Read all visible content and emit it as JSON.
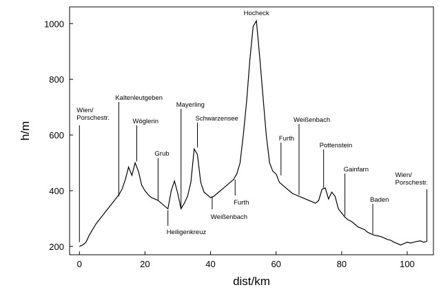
{
  "chart_data": {
    "type": "line",
    "title": "",
    "xlabel": "dist/km",
    "ylabel": "h/m",
    "xlim": [
      -3,
      108
    ],
    "ylim": [
      170,
      1060
    ],
    "x_ticks": [
      0,
      20,
      40,
      60,
      80,
      100
    ],
    "y_ticks": [
      200,
      400,
      600,
      800,
      1000
    ],
    "grid": false,
    "series": [
      {
        "x": [
          0,
          1,
          2,
          3,
          4,
          5,
          6,
          7,
          8,
          9,
          10,
          11,
          12,
          13,
          14,
          15,
          16,
          17,
          18,
          19,
          20,
          21,
          22,
          23,
          24,
          25,
          26,
          27,
          28,
          29,
          30,
          31,
          32,
          33,
          34,
          35,
          36,
          37,
          38,
          39,
          40,
          41,
          42,
          43,
          44,
          45,
          46,
          47,
          48,
          49,
          50,
          51,
          52,
          53,
          54,
          55,
          56,
          57,
          58,
          59,
          60,
          61,
          62,
          63,
          64,
          65,
          66,
          67,
          68,
          69,
          70,
          71,
          72,
          73,
          74,
          75,
          76,
          77,
          78,
          79,
          80,
          81,
          82,
          83,
          84,
          85,
          86,
          87,
          88,
          89,
          90,
          91,
          92,
          93,
          94,
          95,
          96,
          97,
          98,
          99,
          100,
          101,
          102,
          103,
          104,
          105,
          106
        ],
        "y": [
          200,
          205,
          215,
          240,
          260,
          280,
          295,
          310,
          325,
          340,
          355,
          370,
          385,
          405,
          440,
          485,
          455,
          500,
          470,
          420,
          400,
          385,
          375,
          370,
          365,
          355,
          345,
          335,
          400,
          435,
          390,
          335,
          355,
          380,
          430,
          550,
          530,
          430,
          395,
          385,
          375,
          380,
          390,
          400,
          410,
          420,
          430,
          440,
          460,
          500,
          600,
          720,
          870,
          990,
          1010,
          880,
          740,
          600,
          500,
          470,
          460,
          430,
          420,
          410,
          400,
          390,
          385,
          380,
          375,
          370,
          365,
          360,
          355,
          365,
          405,
          410,
          370,
          395,
          380,
          335,
          320,
          305,
          295,
          290,
          280,
          270,
          265,
          260,
          250,
          245,
          240,
          238,
          235,
          230,
          225,
          222,
          215,
          210,
          205,
          210,
          215,
          212,
          215,
          218,
          220,
          215,
          218
        ]
      }
    ],
    "annotations": [
      {
        "lines": [
          "Wien/",
          "Porschestr."
        ],
        "x": 0,
        "y": 215
      },
      {
        "lines": [
          "Kaltenleutgeben"
        ],
        "x": 12,
        "y": 380
      },
      {
        "lines": [
          "Wöglerin"
        ],
        "x": 17.5,
        "y": 505
      },
      {
        "lines": [
          "Grub"
        ],
        "x": 24,
        "y": 365
      },
      {
        "lines": [
          "Heiligenkreuz"
        ],
        "x": 27,
        "y": 330
      },
      {
        "lines": [
          "Mayerling"
        ],
        "x": 31,
        "y": 340
      },
      {
        "lines": [
          "Schwarzensee"
        ],
        "x": 36,
        "y": 555
      },
      {
        "lines": [
          "Weißenbach"
        ],
        "x": 40.5,
        "y": 380
      },
      {
        "lines": [
          "Furth"
        ],
        "x": 47.5,
        "y": 440
      },
      {
        "lines": [
          "Hocheck"
        ],
        "x": 54,
        "y": 1010
      },
      {
        "lines": [
          "Furth"
        ],
        "x": 61.5,
        "y": 455
      },
      {
        "lines": [
          "Weißenbach"
        ],
        "x": 67,
        "y": 385
      },
      {
        "lines": [
          "Pottenstein"
        ],
        "x": 74.5,
        "y": 410
      },
      {
        "lines": [
          "Gainfarn"
        ],
        "x": 81,
        "y": 310
      },
      {
        "lines": [
          "Baden"
        ],
        "x": 89.5,
        "y": 245
      },
      {
        "lines": [
          "Wien/",
          "Porschestr."
        ],
        "x": 106,
        "y": 218
      }
    ]
  }
}
